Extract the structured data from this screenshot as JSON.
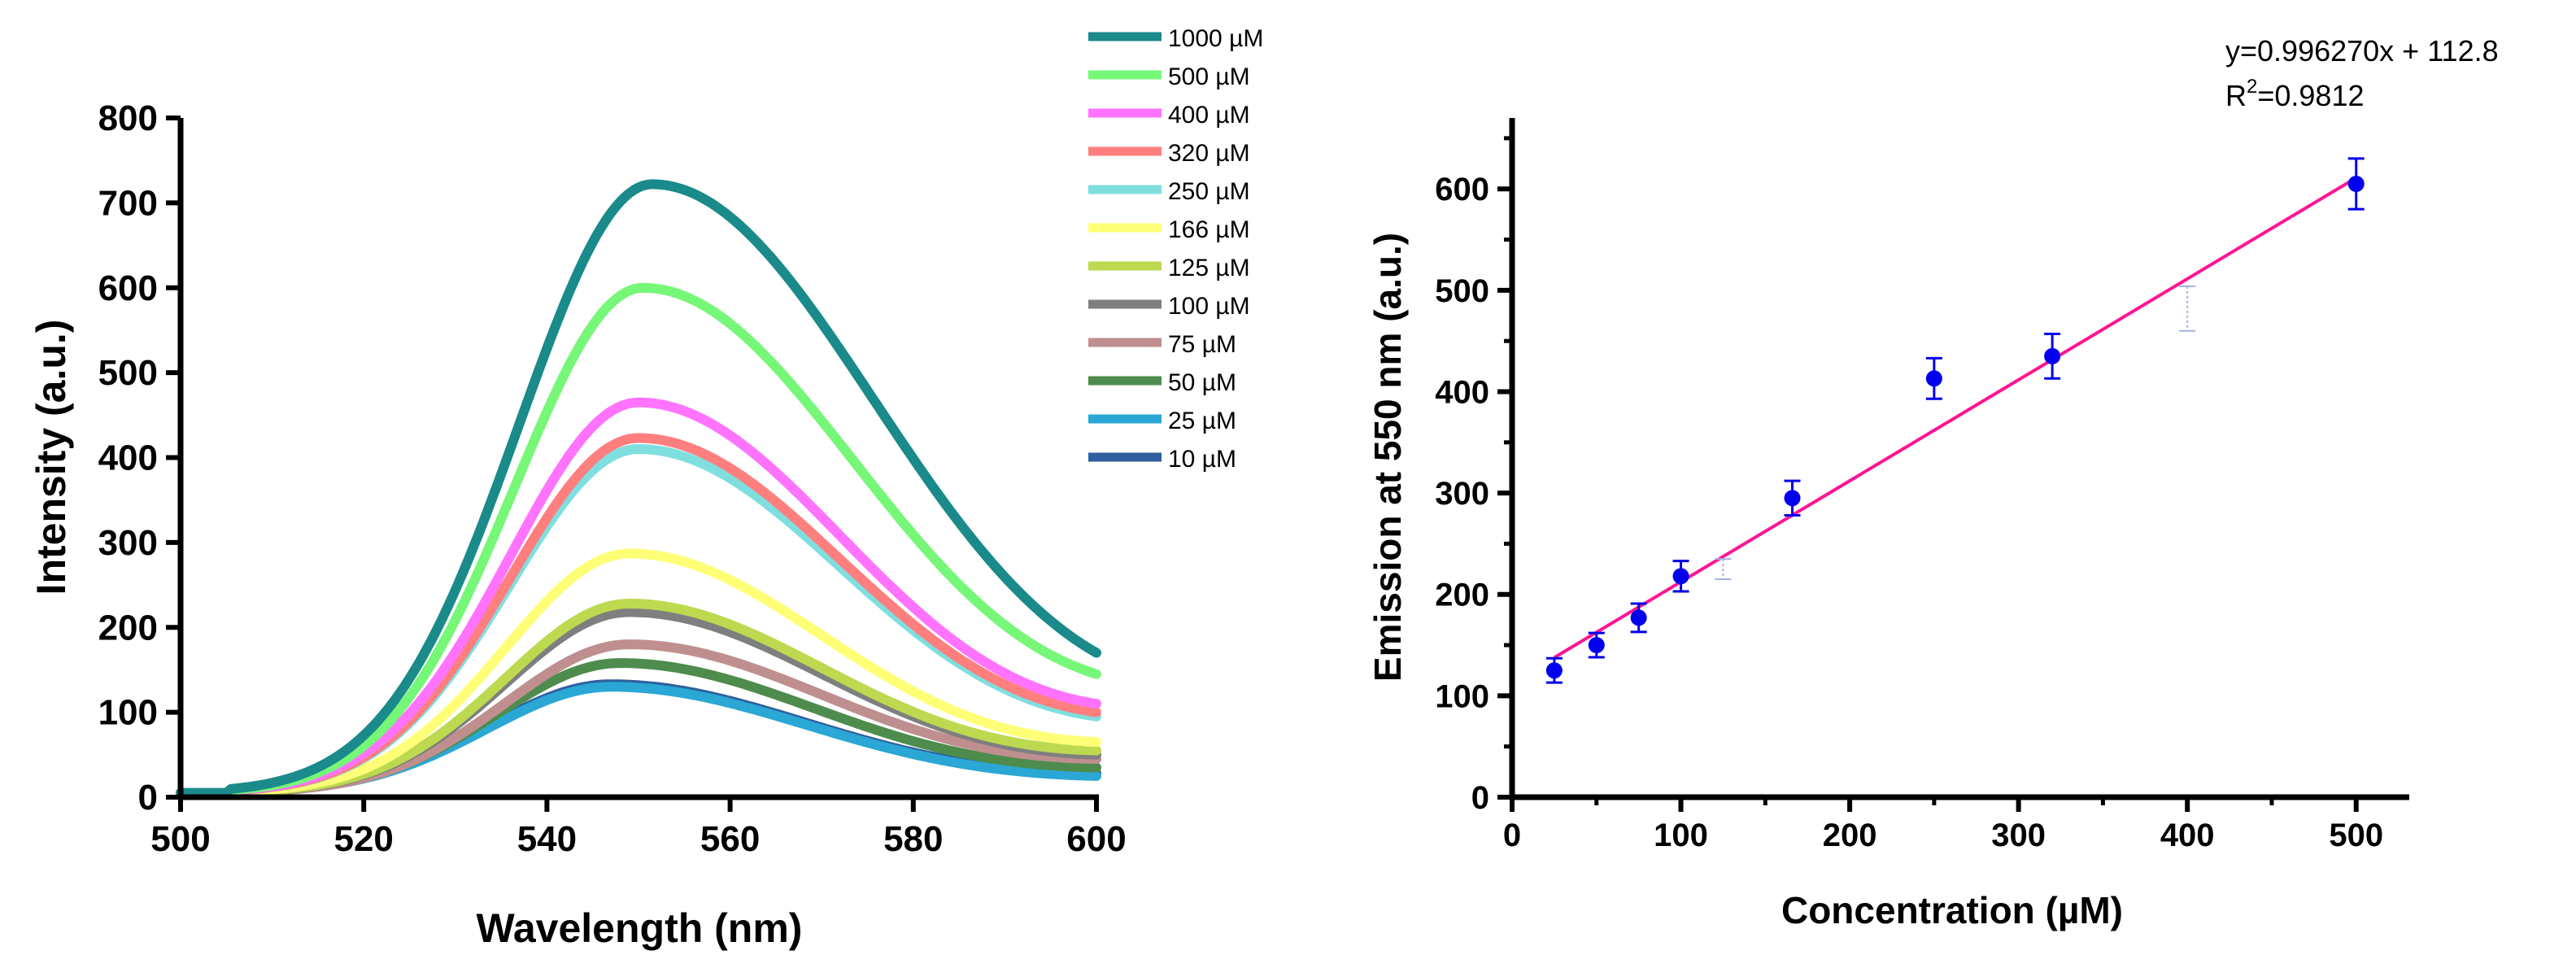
{
  "chart_data": [
    {
      "type": "line",
      "xlabel": "Wavelength (nm)",
      "ylabel": "Intensity (a.u.)",
      "xlim": [
        500,
        600
      ],
      "ylim": [
        0,
        800
      ],
      "xticks": [
        500,
        520,
        540,
        560,
        580,
        600
      ],
      "yticks": [
        0,
        100,
        200,
        300,
        400,
        500,
        600,
        700,
        800
      ],
      "xtick_labels": [
        "500",
        "520",
        "540",
        "560",
        "580",
        "600"
      ],
      "ytick_labels": [
        "0",
        "100",
        "200",
        "300",
        "400",
        "500",
        "600",
        "700",
        "800"
      ],
      "baseline": 5,
      "onset_nm": 505,
      "grid": false,
      "legend_position": "top-right outside",
      "series": [
        {
          "name": "1000 µM",
          "color": "#1a8a8a",
          "peak": 722,
          "center": 551.5,
          "sigma_left": 14.5,
          "sigma_right": 25,
          "tail_value_600": 170
        },
        {
          "name": "500 µM",
          "color": "#77f777",
          "peak": 600,
          "center": 550.5,
          "sigma_left": 14,
          "sigma_right": 24,
          "tail_value_600": 145
        },
        {
          "name": "400 µM",
          "color": "#ff73ff",
          "peak": 465,
          "center": 550,
          "sigma_left": 14,
          "sigma_right": 23,
          "tail_value_600": 110
        },
        {
          "name": "320 µM",
          "color": "#ff7f7f",
          "peak": 423,
          "center": 550,
          "sigma_left": 14,
          "sigma_right": 23,
          "tail_value_600": 100
        },
        {
          "name": "250 µM",
          "color": "#7fdfdf",
          "peak": 410,
          "center": 550,
          "sigma_left": 14,
          "sigma_right": 23,
          "tail_value_600": 95
        },
        {
          "name": "166 µM",
          "color": "#ffff77",
          "peak": 287,
          "center": 549,
          "sigma_left": 13.5,
          "sigma_right": 22,
          "tail_value_600": 65
        },
        {
          "name": "125 µM",
          "color": "#bcd94f",
          "peak": 228,
          "center": 549,
          "sigma_left": 13.5,
          "sigma_right": 22,
          "tail_value_600": 55
        },
        {
          "name": "100 µM",
          "color": "#7f7f7f",
          "peak": 218,
          "center": 549,
          "sigma_left": 13.5,
          "sigma_right": 22,
          "tail_value_600": 50
        },
        {
          "name": "75 µM",
          "color": "#bf8f8f",
          "peak": 180,
          "center": 549,
          "sigma_left": 13.5,
          "sigma_right": 22,
          "tail_value_600": 45
        },
        {
          "name": "50 µM",
          "color": "#4d8c4d",
          "peak": 158,
          "center": 548,
          "sigma_left": 13.5,
          "sigma_right": 22,
          "tail_value_600": 35
        },
        {
          "name": "25 µM",
          "color": "#2aa7d4",
          "peak": 130,
          "center": 547,
          "sigma_left": 13.5,
          "sigma_right": 22,
          "tail_value_600": 25
        },
        {
          "name": "10 µM",
          "color": "#2f5f9f",
          "peak": 133,
          "center": 547,
          "sigma_left": 13.5,
          "sigma_right": 22,
          "tail_value_600": 28
        }
      ]
    },
    {
      "type": "scatter",
      "xlabel": "Concentration (µM)",
      "ylabel": "Emission at 550 nm (a.u.)",
      "xlim": [
        0,
        530
      ],
      "ylim": [
        0,
        670
      ],
      "xticks": [
        0,
        100,
        200,
        300,
        400,
        500
      ],
      "yticks": [
        0,
        100,
        200,
        300,
        400,
        500,
        600
      ],
      "xtick_labels": [
        "0",
        "100",
        "200",
        "300",
        "400",
        "500"
      ],
      "ytick_labels": [
        "0",
        "100",
        "200",
        "300",
        "400",
        "500",
        "600"
      ],
      "grid": false,
      "point_color": "#0000ee",
      "fit_color": "#ff1493",
      "points": [
        {
          "x": 25,
          "y": 125,
          "err": 12
        },
        {
          "x": 50,
          "y": 150,
          "err": 12
        },
        {
          "x": 75,
          "y": 177,
          "err": 14
        },
        {
          "x": 100,
          "y": 218,
          "err": 15
        },
        {
          "x": 166,
          "y": 295,
          "err": 17
        },
        {
          "x": 250,
          "y": 413,
          "err": 20
        },
        {
          "x": 320,
          "y": 435,
          "err": 22
        },
        {
          "x": 500,
          "y": 605,
          "err": 25
        }
      ],
      "faint_points": [
        {
          "x": 125,
          "y": 225,
          "err": 10
        },
        {
          "x": 400,
          "y": 482,
          "err": 22
        }
      ],
      "fit": {
        "slope": 0.99627,
        "intercept": 112.8,
        "x_range": [
          25,
          500
        ]
      },
      "equation_text": "y=0.996270x + 112.8",
      "r2_prefix": "R",
      "r2_sup": "2",
      "r2_value": "=0.9812"
    }
  ]
}
